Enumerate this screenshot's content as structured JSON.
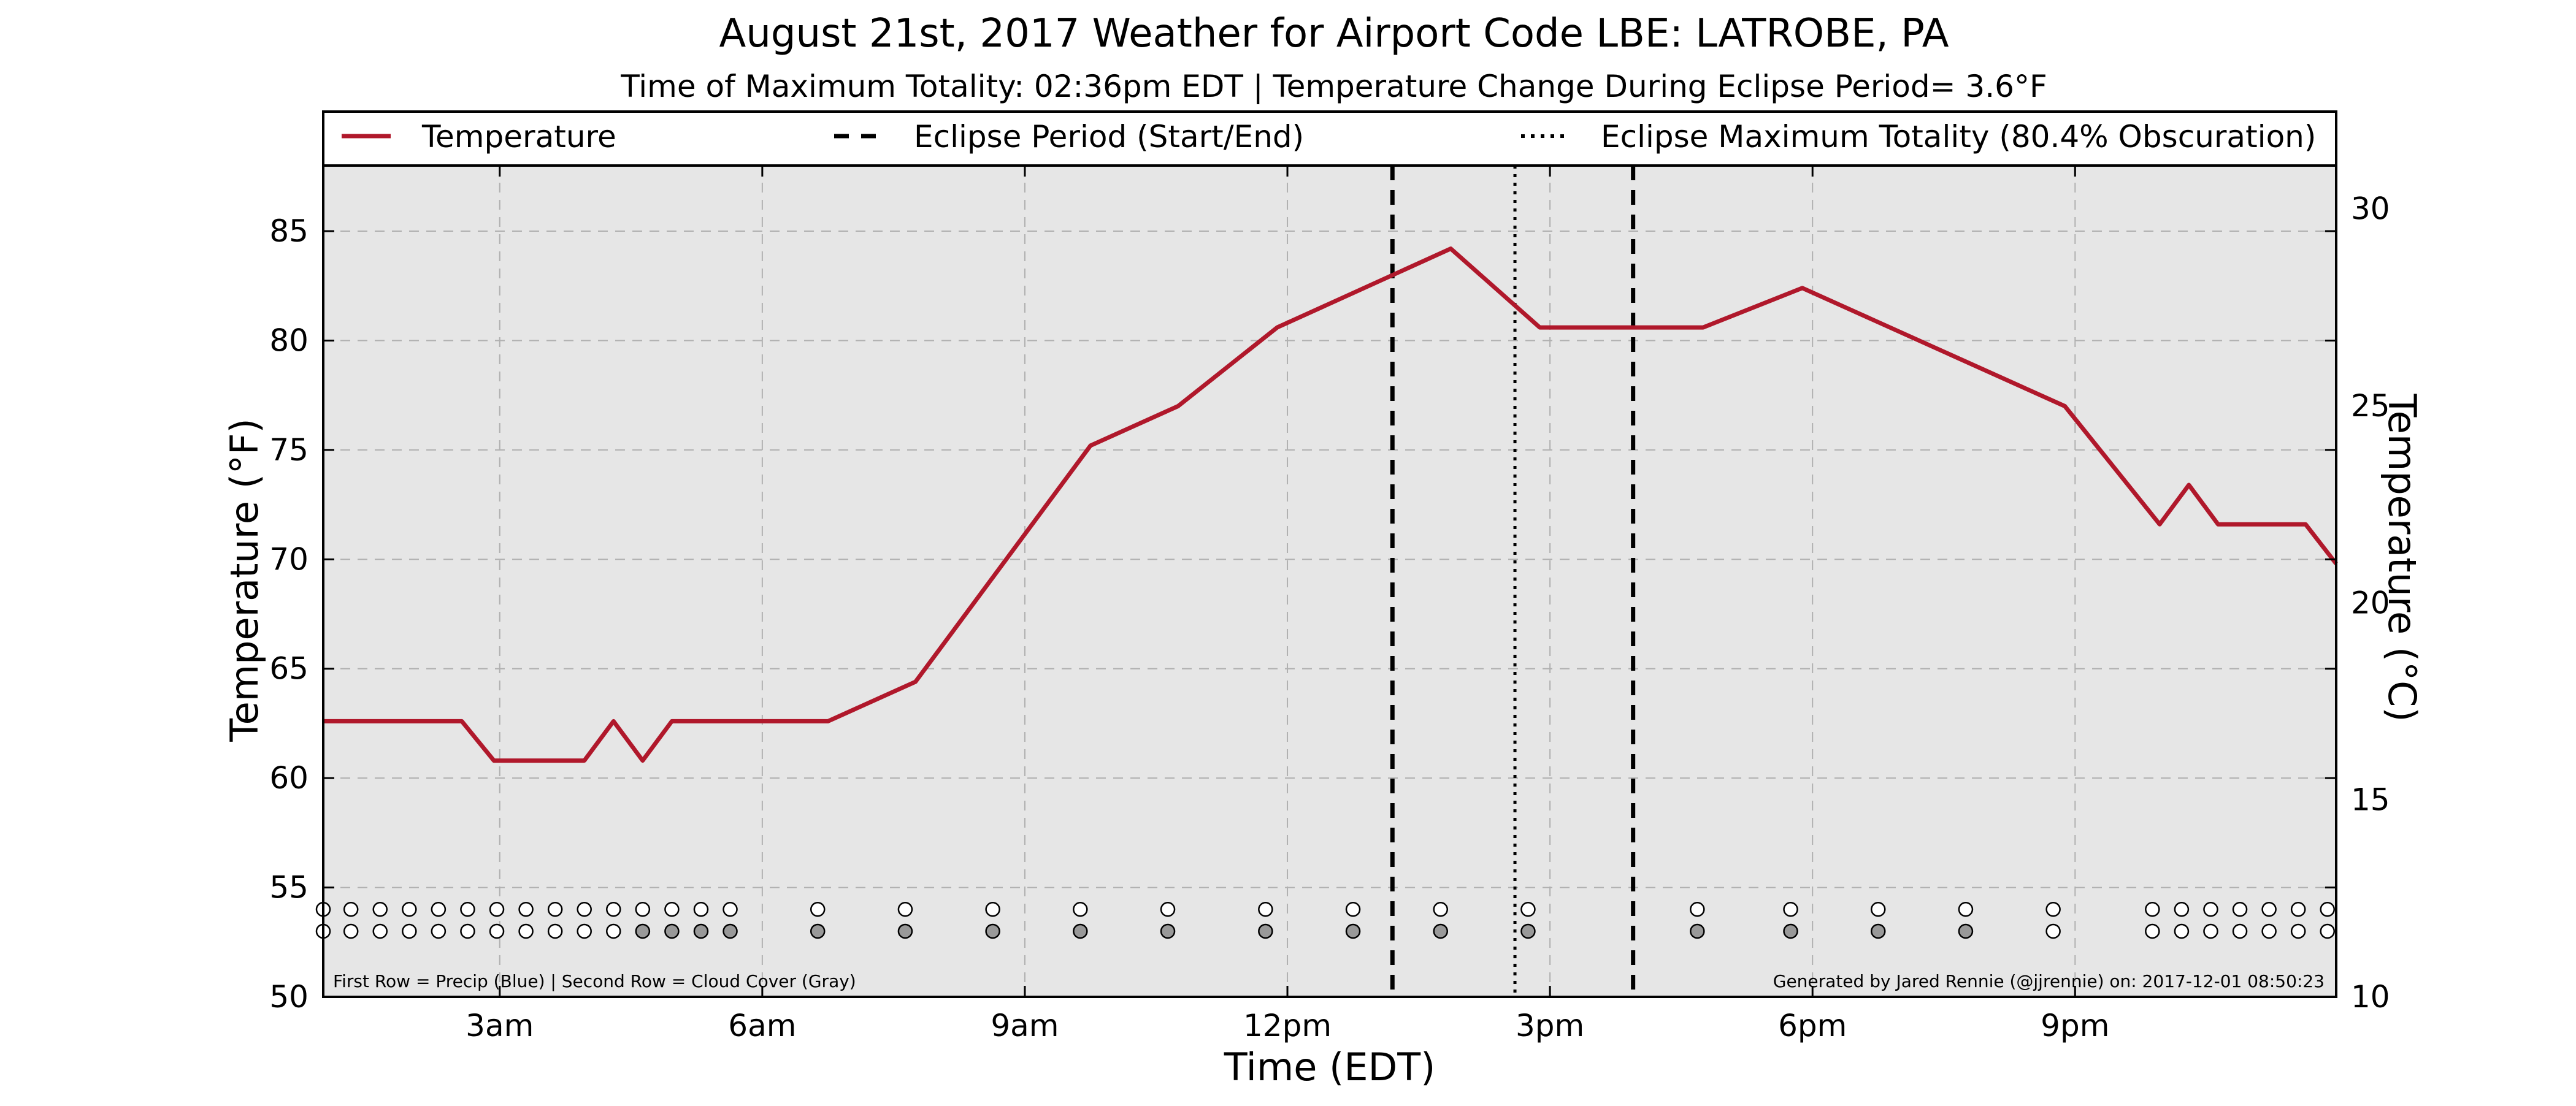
{
  "chart_data": {
    "type": "line",
    "title": "August 21st, 2017 Weather for Airport Code LBE: LATROBE, PA",
    "subtitle": "Time of Maximum Totality: 02:36pm EDT | Temperature Change During Eclipse Period= 3.6°F",
    "xlabel": "Time (EDT)",
    "ylabel": "Temperature (°F)",
    "y2label": "Temperature (°C)",
    "xlim": [
      "00:59",
      "23:59"
    ],
    "ylim": [
      50,
      88
    ],
    "y2lim": [
      10,
      31.1
    ],
    "x_ticks": [
      {
        "time": "03:00",
        "label": "3am"
      },
      {
        "time": "06:00",
        "label": "6am"
      },
      {
        "time": "09:00",
        "label": "9am"
      },
      {
        "time": "12:00",
        "label": "12pm"
      },
      {
        "time": "15:00",
        "label": "3pm"
      },
      {
        "time": "18:00",
        "label": "6pm"
      },
      {
        "time": "21:00",
        "label": "9pm"
      }
    ],
    "y_ticks": [
      50,
      55,
      60,
      65,
      70,
      75,
      80,
      85
    ],
    "y2_ticks": [
      10,
      15,
      20,
      25,
      30
    ],
    "grid": true,
    "legend_placement": "top",
    "legend": {
      "temperature": "Temperature",
      "eclipse_period": "Eclipse Period (Start/End)",
      "max_totality": "Eclipse Maximum Totality (80.4% Obscuration)"
    },
    "series": [
      {
        "name": "Temperature",
        "color": "#b0182b",
        "points": [
          [
            "00:59",
            62.6
          ],
          [
            "02:34",
            62.6
          ],
          [
            "02:56",
            60.8
          ],
          [
            "03:38",
            60.8
          ],
          [
            "03:58",
            60.8
          ],
          [
            "04:18",
            62.6
          ],
          [
            "04:38",
            60.8
          ],
          [
            "04:58",
            62.6
          ],
          [
            "05:56",
            62.6
          ],
          [
            "06:45",
            62.6
          ],
          [
            "07:45",
            64.4
          ],
          [
            "09:45",
            75.2
          ],
          [
            "10:45",
            77.0
          ],
          [
            "11:53",
            80.6
          ],
          [
            "13:52",
            84.2
          ],
          [
            "14:53",
            80.6
          ],
          [
            "16:45",
            80.6
          ],
          [
            "17:53",
            82.4
          ],
          [
            "20:53",
            77.0
          ],
          [
            "21:58",
            71.6
          ],
          [
            "22:18",
            73.4
          ],
          [
            "22:38",
            71.6
          ],
          [
            "23:38",
            71.6
          ],
          [
            "23:59",
            69.8
          ]
        ]
      }
    ],
    "eclipse": {
      "start": "13:12",
      "end": "15:57",
      "max_totality": "14:36"
    },
    "precip_colors": {
      "none": "#ffffff",
      "rain": "#1f77b4"
    },
    "cloud_cover_colors": {
      "clear": "#ffffff",
      "cloudy": "#999999"
    },
    "observations": [
      {
        "time": "00:59",
        "precip": "none",
        "cloud": "clear"
      },
      {
        "time": "01:18",
        "precip": "none",
        "cloud": "clear"
      },
      {
        "time": "01:38",
        "precip": "none",
        "cloud": "clear"
      },
      {
        "time": "01:58",
        "precip": "none",
        "cloud": "clear"
      },
      {
        "time": "02:18",
        "precip": "none",
        "cloud": "clear"
      },
      {
        "time": "02:38",
        "precip": "none",
        "cloud": "clear"
      },
      {
        "time": "02:58",
        "precip": "none",
        "cloud": "clear"
      },
      {
        "time": "03:18",
        "precip": "none",
        "cloud": "clear"
      },
      {
        "time": "03:38",
        "precip": "none",
        "cloud": "clear"
      },
      {
        "time": "03:58",
        "precip": "none",
        "cloud": "clear"
      },
      {
        "time": "04:18",
        "precip": "none",
        "cloud": "clear"
      },
      {
        "time": "04:38",
        "precip": "none",
        "cloud": "cloudy"
      },
      {
        "time": "04:58",
        "precip": "none",
        "cloud": "cloudy"
      },
      {
        "time": "05:18",
        "precip": "none",
        "cloud": "cloudy"
      },
      {
        "time": "05:38",
        "precip": "none",
        "cloud": "cloudy"
      },
      {
        "time": "06:38",
        "precip": "none",
        "cloud": "cloudy"
      },
      {
        "time": "07:38",
        "precip": "none",
        "cloud": "cloudy"
      },
      {
        "time": "08:38",
        "precip": "none",
        "cloud": "cloudy"
      },
      {
        "time": "09:38",
        "precip": "none",
        "cloud": "cloudy"
      },
      {
        "time": "10:38",
        "precip": "none",
        "cloud": "cloudy"
      },
      {
        "time": "11:45",
        "precip": "none",
        "cloud": "cloudy"
      },
      {
        "time": "12:45",
        "precip": "none",
        "cloud": "cloudy"
      },
      {
        "time": "13:45",
        "precip": "none",
        "cloud": "cloudy"
      },
      {
        "time": "14:45",
        "precip": "none",
        "cloud": "cloudy"
      },
      {
        "time": "16:41",
        "precip": "none",
        "cloud": "cloudy"
      },
      {
        "time": "17:45",
        "precip": "none",
        "cloud": "cloudy"
      },
      {
        "time": "18:45",
        "precip": "none",
        "cloud": "cloudy"
      },
      {
        "time": "19:45",
        "precip": "none",
        "cloud": "cloudy"
      },
      {
        "time": "20:45",
        "precip": "none",
        "cloud": "clear"
      },
      {
        "time": "21:53",
        "precip": "none",
        "cloud": "clear"
      },
      {
        "time": "22:13",
        "precip": "none",
        "cloud": "clear"
      },
      {
        "time": "22:33",
        "precip": "none",
        "cloud": "clear"
      },
      {
        "time": "22:53",
        "precip": "none",
        "cloud": "clear"
      },
      {
        "time": "23:13",
        "precip": "none",
        "cloud": "clear"
      },
      {
        "time": "23:33",
        "precip": "none",
        "cloud": "clear"
      },
      {
        "time": "23:53",
        "precip": "none",
        "cloud": "clear"
      }
    ],
    "observation_rows_note": "First Row = Precip (Blue) | Second Row = Cloud Cover (Gray)",
    "generated_by": "Generated by Jared Rennie (@jjrennie) on: 2017-12-01 08:50:23"
  }
}
